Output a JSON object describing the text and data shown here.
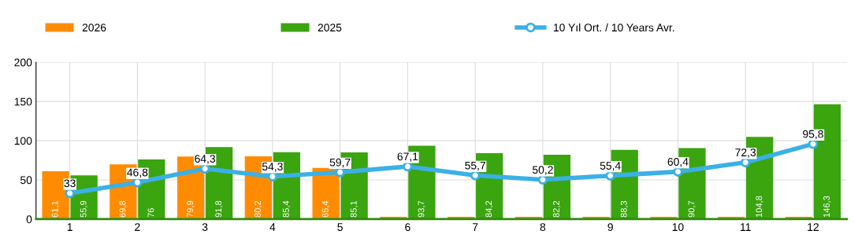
{
  "chart_data": {
    "type": "bar",
    "categories": [
      "1",
      "2",
      "3",
      "4",
      "5",
      "6",
      "7",
      "8",
      "9",
      "10",
      "11",
      "12"
    ],
    "series": [
      {
        "name": "2026",
        "color": "#ff8c00",
        "values": [
          61.1,
          69.8,
          79.9,
          80.2,
          65.4,
          3,
          3,
          3,
          3,
          3,
          3,
          3
        ],
        "value_labels": [
          "61,1",
          "69,8",
          "79,9",
          "80,2",
          "65,4",
          null,
          null,
          null,
          null,
          null,
          null,
          null
        ]
      },
      {
        "name": "2025",
        "color": "#3aa50f",
        "values": [
          55.9,
          76,
          91.8,
          85.4,
          85.1,
          93.7,
          84.2,
          82.2,
          88.3,
          90.7,
          104.8,
          146.3
        ],
        "value_labels": [
          "55,9",
          "76",
          "91,8",
          "85,4",
          "85,1",
          "93,7",
          "84,2",
          "82,2",
          "88,3",
          "90,7",
          "104,8",
          "146,3"
        ]
      },
      {
        "name": "10 Yıl Ort. / 10 Years Avr.",
        "type": "line",
        "color": "#3bb0e6",
        "marker": "circle",
        "values": [
          33,
          46.8,
          64.3,
          54.3,
          59.7,
          67.1,
          55.7,
          50.2,
          55.4,
          60.4,
          72.3,
          95.8
        ],
        "value_labels": [
          "33",
          "46,8",
          "64,3",
          "54,3",
          "59,7",
          "67,1",
          "55,7",
          "50,2",
          "55,4",
          "60,4",
          "72,3",
          "95,8"
        ]
      }
    ],
    "ylim": [
      0,
      200
    ],
    "yticks": [
      0,
      50,
      100,
      150,
      200
    ],
    "grid": true,
    "legend": "top"
  }
}
